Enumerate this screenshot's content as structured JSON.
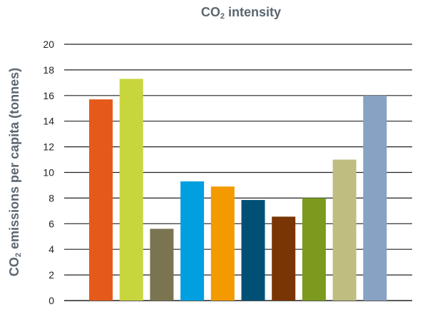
{
  "chart_data": {
    "type": "bar",
    "title": "CO2 intensity",
    "ylabel": "CO2 emissions per capita (tonnes)",
    "xlabel": "",
    "ylim": [
      0,
      20
    ],
    "yticks": [
      0,
      2,
      4,
      6,
      8,
      10,
      12,
      14,
      16,
      18,
      20
    ],
    "grid": true,
    "values": [
      15.7,
      17.3,
      5.6,
      9.3,
      8.9,
      7.85,
      6.55,
      8.0,
      11.0,
      16.0
    ],
    "colors": [
      "#e55a1a",
      "#c8d63d",
      "#7a7450",
      "#009fe0",
      "#f39a00",
      "#004f74",
      "#7a3504",
      "#7b9a1e",
      "#bfbd80",
      "#87a2c2"
    ]
  }
}
